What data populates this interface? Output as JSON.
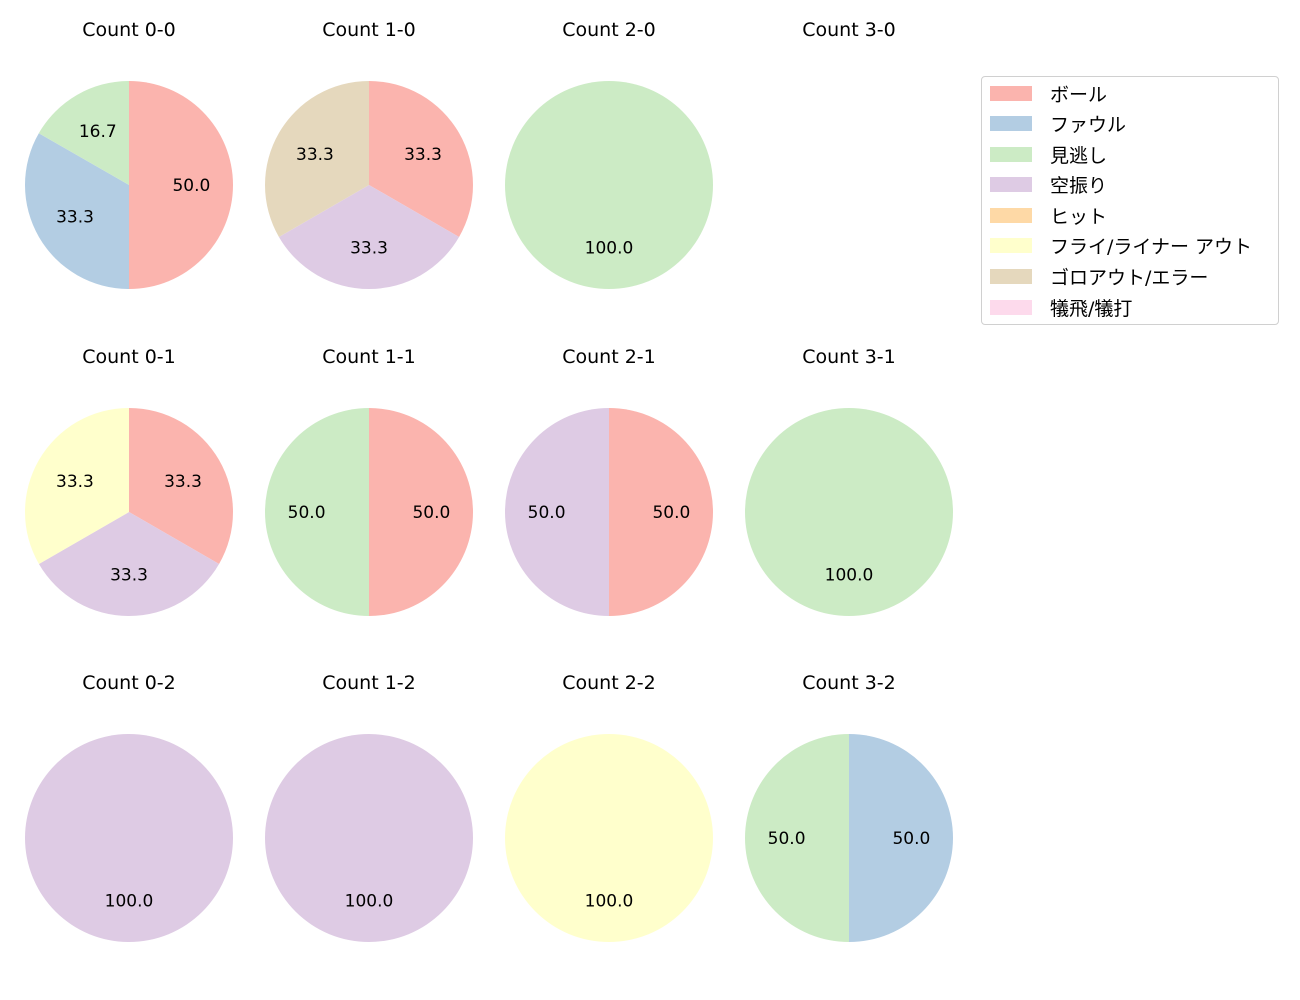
{
  "chart_data": {
    "type": "pie",
    "legend": {
      "position": "upper right",
      "entries": [
        {
          "label": "ボール",
          "color": "#fbb4ae"
        },
        {
          "label": "ファウル",
          "color": "#b3cde3"
        },
        {
          "label": "見逃し",
          "color": "#ccebc5"
        },
        {
          "label": "空振り",
          "color": "#decbe4"
        },
        {
          "label": "ヒット",
          "color": "#fed9a6"
        },
        {
          "label": "フライ/ライナー アウト",
          "color": "#ffffcc"
        },
        {
          "label": "ゴロアウト/エラー",
          "color": "#e5d8bd"
        },
        {
          "label": "犠飛/犠打",
          "color": "#fddaec"
        }
      ]
    },
    "pies": [
      {
        "title": "Count 0-0",
        "row": 0,
        "col": 0,
        "slices": [
          {
            "cat": 0,
            "value": 50.0
          },
          {
            "cat": 1,
            "value": 33.3
          },
          {
            "cat": 2,
            "value": 16.7
          }
        ]
      },
      {
        "title": "Count 1-0",
        "row": 0,
        "col": 1,
        "slices": [
          {
            "cat": 0,
            "value": 33.3
          },
          {
            "cat": 3,
            "value": 33.3
          },
          {
            "cat": 6,
            "value": 33.3
          }
        ]
      },
      {
        "title": "Count 2-0",
        "row": 0,
        "col": 2,
        "slices": [
          {
            "cat": 2,
            "value": 100.0
          }
        ]
      },
      {
        "title": "Count 3-0",
        "row": 0,
        "col": 3,
        "slices": []
      },
      {
        "title": "Count 0-1",
        "row": 1,
        "col": 0,
        "slices": [
          {
            "cat": 0,
            "value": 33.3
          },
          {
            "cat": 3,
            "value": 33.3
          },
          {
            "cat": 5,
            "value": 33.3
          }
        ]
      },
      {
        "title": "Count 1-1",
        "row": 1,
        "col": 1,
        "slices": [
          {
            "cat": 0,
            "value": 50.0
          },
          {
            "cat": 2,
            "value": 50.0
          }
        ]
      },
      {
        "title": "Count 2-1",
        "row": 1,
        "col": 2,
        "slices": [
          {
            "cat": 0,
            "value": 50.0
          },
          {
            "cat": 3,
            "value": 50.0
          }
        ]
      },
      {
        "title": "Count 3-1",
        "row": 1,
        "col": 3,
        "slices": [
          {
            "cat": 2,
            "value": 100.0
          }
        ]
      },
      {
        "title": "Count 0-2",
        "row": 2,
        "col": 0,
        "slices": [
          {
            "cat": 3,
            "value": 100.0
          }
        ]
      },
      {
        "title": "Count 1-2",
        "row": 2,
        "col": 1,
        "slices": [
          {
            "cat": 3,
            "value": 100.0
          }
        ]
      },
      {
        "title": "Count 2-2",
        "row": 2,
        "col": 2,
        "slices": [
          {
            "cat": 5,
            "value": 100.0
          }
        ]
      },
      {
        "title": "Count 3-2",
        "row": 2,
        "col": 3,
        "slices": [
          {
            "cat": 1,
            "value": 50.0
          },
          {
            "cat": 2,
            "value": 50.0
          }
        ]
      }
    ]
  }
}
